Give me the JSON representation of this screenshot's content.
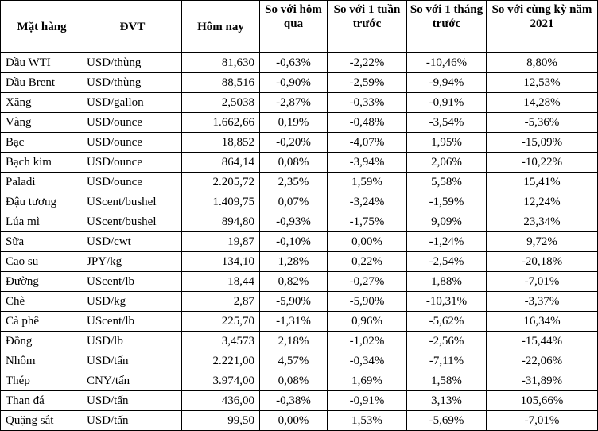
{
  "headers": {
    "item": "Mặt hàng",
    "unit": "ĐVT",
    "today": "Hôm nay",
    "vs_yesterday": "So với hôm qua",
    "vs_week": "So với 1 tuần trước",
    "vs_month": "So với 1 tháng trước",
    "vs_year": "So với cùng kỳ năm 2021"
  },
  "rows": [
    {
      "item": "Dầu WTI",
      "unit": "USD/thùng",
      "today": "81,630",
      "vs_yesterday": "-0,63%",
      "vs_week": "-2,22%",
      "vs_month": "-10,46%",
      "vs_year": "8,80%"
    },
    {
      "item": "Dầu Brent",
      "unit": "USD/thùng",
      "today": "88,516",
      "vs_yesterday": "-0,90%",
      "vs_week": "-2,59%",
      "vs_month": "-9,94%",
      "vs_year": "12,53%"
    },
    {
      "item": "Xăng",
      "unit": "USD/gallon",
      "today": "2,5038",
      "vs_yesterday": "-2,87%",
      "vs_week": "-0,33%",
      "vs_month": "-0,91%",
      "vs_year": "14,28%"
    },
    {
      "item": "Vàng",
      "unit": "USD/ounce",
      "today": "1.662,66",
      "vs_yesterday": "0,19%",
      "vs_week": "-0,48%",
      "vs_month": "-3,54%",
      "vs_year": "-5,36%"
    },
    {
      "item": "Bạc",
      "unit": "USD/ounce",
      "today": "18,852",
      "vs_yesterday": "-0,20%",
      "vs_week": "-4,07%",
      "vs_month": "1,95%",
      "vs_year": "-15,09%"
    },
    {
      "item": "Bạch kim",
      "unit": "USD/ounce",
      "today": "864,14",
      "vs_yesterday": "0,08%",
      "vs_week": "-3,94%",
      "vs_month": "2,06%",
      "vs_year": "-10,22%"
    },
    {
      "item": "Paladi",
      "unit": "USD/ounce",
      "today": "2.205,72",
      "vs_yesterday": "2,35%",
      "vs_week": "1,59%",
      "vs_month": "5,58%",
      "vs_year": "15,41%"
    },
    {
      "item": "Đậu tương",
      "unit": "UScent/bushel",
      "today": "1.409,75",
      "vs_yesterday": "0,07%",
      "vs_week": "-3,24%",
      "vs_month": "-1,59%",
      "vs_year": "12,24%"
    },
    {
      "item": "Lúa mì",
      "unit": "UScent/bushel",
      "today": "894,80",
      "vs_yesterday": "-0,93%",
      "vs_week": "-1,75%",
      "vs_month": "9,09%",
      "vs_year": "23,34%"
    },
    {
      "item": "Sữa",
      "unit": "USD/cwt",
      "today": "19,87",
      "vs_yesterday": "-0,10%",
      "vs_week": "0,00%",
      "vs_month": "-1,24%",
      "vs_year": "9,72%"
    },
    {
      "item": "Cao su",
      "unit": "JPY/kg",
      "today": "134,10",
      "vs_yesterday": "1,28%",
      "vs_week": "0,22%",
      "vs_month": "-2,54%",
      "vs_year": "-20,18%"
    },
    {
      "item": "Đường",
      "unit": "UScent/lb",
      "today": "18,44",
      "vs_yesterday": "0,82%",
      "vs_week": "-0,27%",
      "vs_month": "1,88%",
      "vs_year": "-7,01%"
    },
    {
      "item": "Chè",
      "unit": "USD/kg",
      "today": "2,87",
      "vs_yesterday": "-5,90%",
      "vs_week": "-5,90%",
      "vs_month": "-10,31%",
      "vs_year": "-3,37%"
    },
    {
      "item": "Cà phê",
      "unit": "UScent/lb",
      "today": "225,70",
      "vs_yesterday": "-1,31%",
      "vs_week": "0,96%",
      "vs_month": "-5,62%",
      "vs_year": "16,34%"
    },
    {
      "item": "Đồng",
      "unit": "USD/lb",
      "today": "3,4573",
      "vs_yesterday": "2,18%",
      "vs_week": "-1,02%",
      "vs_month": "-2,56%",
      "vs_year": "-15,44%"
    },
    {
      "item": "Nhôm",
      "unit": "USD/tấn",
      "today": "2.221,00",
      "vs_yesterday": "4,57%",
      "vs_week": "-0,34%",
      "vs_month": "-7,11%",
      "vs_year": "-22,06%"
    },
    {
      "item": "Thép",
      "unit": "CNY/tấn",
      "today": "3.974,00",
      "vs_yesterday": "0,08%",
      "vs_week": "1,69%",
      "vs_month": "1,58%",
      "vs_year": "-31,89%"
    },
    {
      "item": "Than đá",
      "unit": "USD/tấn",
      "today": "436,00",
      "vs_yesterday": "-0,38%",
      "vs_week": "-0,91%",
      "vs_month": "3,13%",
      "vs_year": "105,66%"
    },
    {
      "item": "Quặng sắt",
      "unit": "USD/tấn",
      "today": "99,50",
      "vs_yesterday": "0,00%",
      "vs_week": "1,53%",
      "vs_month": "-5,69%",
      "vs_year": "-7,01%"
    }
  ]
}
